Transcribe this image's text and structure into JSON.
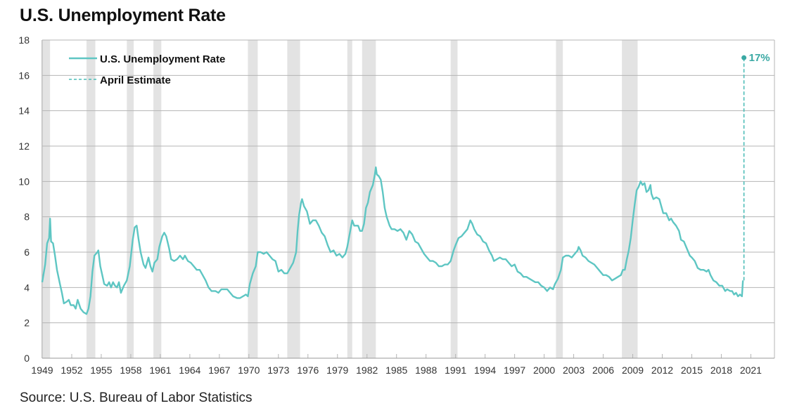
{
  "title": "U.S. Unemployment Rate",
  "source": "Source: U.S. Bureau of Labor Statistics",
  "colors": {
    "series": "#5ec6c3",
    "estimate": "#4dbdb8",
    "annotation": "#3aa9a4",
    "recession": "#e3e3e3",
    "grid": "#b5b5b5"
  },
  "chart_data": {
    "type": "line",
    "title": "U.S. Unemployment Rate",
    "xlabel": "",
    "ylabel": "",
    "xlim": [
      1949,
      2023.4
    ],
    "ylim": [
      0,
      18
    ],
    "grid": true,
    "legend_position": "top-left",
    "y_ticks": [
      "0",
      "2",
      "4",
      "6",
      "8",
      "10",
      "12",
      "14",
      "16",
      "18"
    ],
    "x_ticks": [
      "1949",
      "1952",
      "1955",
      "1958",
      "1961",
      "1964",
      "1967",
      "1970",
      "1973",
      "1976",
      "1979",
      "1982",
      "1985",
      "1988",
      "1991",
      "1994",
      "1997",
      "2000",
      "2003",
      "2006",
      "2009",
      "2012",
      "2015",
      "2018",
      "2021"
    ],
    "legend": [
      "U.S. Unemployment Rate",
      "April Estimate"
    ],
    "recessions": [
      [
        1948.9,
        1949.8
      ],
      [
        1953.5,
        1954.4
      ],
      [
        1957.6,
        1958.3
      ],
      [
        1960.3,
        1961.1
      ],
      [
        1969.9,
        1970.9
      ],
      [
        1973.9,
        1975.2
      ],
      [
        1980.0,
        1980.5
      ],
      [
        1981.5,
        1982.9
      ],
      [
        1990.5,
        1991.2
      ],
      [
        2001.2,
        2001.9
      ],
      [
        2007.9,
        2009.5
      ]
    ],
    "series": [
      {
        "name": "U.S. Unemployment Rate",
        "points": [
          [
            1949.0,
            4.3
          ],
          [
            1949.3,
            5.3
          ],
          [
            1949.5,
            6.5
          ],
          [
            1949.7,
            6.8
          ],
          [
            1949.8,
            7.9
          ],
          [
            1949.9,
            6.6
          ],
          [
            1950.1,
            6.5
          ],
          [
            1950.3,
            5.8
          ],
          [
            1950.5,
            5.0
          ],
          [
            1950.8,
            4.2
          ],
          [
            1951.0,
            3.7
          ],
          [
            1951.2,
            3.1
          ],
          [
            1951.5,
            3.2
          ],
          [
            1951.7,
            3.3
          ],
          [
            1951.9,
            3.0
          ],
          [
            1952.2,
            3.0
          ],
          [
            1952.4,
            2.8
          ],
          [
            1952.6,
            3.3
          ],
          [
            1952.9,
            2.8
          ],
          [
            1953.2,
            2.6
          ],
          [
            1953.5,
            2.5
          ],
          [
            1953.7,
            2.8
          ],
          [
            1953.9,
            3.5
          ],
          [
            1954.1,
            4.9
          ],
          [
            1954.3,
            5.8
          ],
          [
            1954.6,
            6.0
          ],
          [
            1954.7,
            6.1
          ],
          [
            1954.9,
            5.2
          ],
          [
            1955.1,
            4.7
          ],
          [
            1955.3,
            4.2
          ],
          [
            1955.6,
            4.1
          ],
          [
            1955.8,
            4.3
          ],
          [
            1956.0,
            4.0
          ],
          [
            1956.2,
            4.3
          ],
          [
            1956.4,
            4.1
          ],
          [
            1956.6,
            4.0
          ],
          [
            1956.8,
            4.3
          ],
          [
            1957.0,
            3.7
          ],
          [
            1957.3,
            4.1
          ],
          [
            1957.6,
            4.4
          ],
          [
            1957.9,
            5.2
          ],
          [
            1958.2,
            6.7
          ],
          [
            1958.4,
            7.4
          ],
          [
            1958.6,
            7.5
          ],
          [
            1958.8,
            6.7
          ],
          [
            1959.0,
            6.0
          ],
          [
            1959.3,
            5.3
          ],
          [
            1959.5,
            5.1
          ],
          [
            1959.8,
            5.7
          ],
          [
            1960.0,
            5.2
          ],
          [
            1960.2,
            4.9
          ],
          [
            1960.4,
            5.4
          ],
          [
            1960.7,
            5.6
          ],
          [
            1960.9,
            6.3
          ],
          [
            1961.2,
            6.9
          ],
          [
            1961.4,
            7.1
          ],
          [
            1961.6,
            6.9
          ],
          [
            1961.9,
            6.2
          ],
          [
            1962.1,
            5.6
          ],
          [
            1962.4,
            5.5
          ],
          [
            1962.7,
            5.6
          ],
          [
            1963.0,
            5.8
          ],
          [
            1963.3,
            5.6
          ],
          [
            1963.5,
            5.8
          ],
          [
            1963.8,
            5.5
          ],
          [
            1964.1,
            5.4
          ],
          [
            1964.4,
            5.2
          ],
          [
            1964.7,
            5.0
          ],
          [
            1965.0,
            5.0
          ],
          [
            1965.3,
            4.7
          ],
          [
            1965.6,
            4.4
          ],
          [
            1965.9,
            4.0
          ],
          [
            1966.2,
            3.8
          ],
          [
            1966.6,
            3.8
          ],
          [
            1966.9,
            3.7
          ],
          [
            1967.2,
            3.9
          ],
          [
            1967.5,
            3.9
          ],
          [
            1967.8,
            3.9
          ],
          [
            1968.1,
            3.7
          ],
          [
            1968.4,
            3.5
          ],
          [
            1968.8,
            3.4
          ],
          [
            1969.1,
            3.4
          ],
          [
            1969.4,
            3.5
          ],
          [
            1969.7,
            3.6
          ],
          [
            1969.9,
            3.5
          ],
          [
            1970.1,
            4.2
          ],
          [
            1970.4,
            4.8
          ],
          [
            1970.7,
            5.2
          ],
          [
            1970.9,
            6.0
          ],
          [
            1971.2,
            6.0
          ],
          [
            1971.5,
            5.9
          ],
          [
            1971.8,
            6.0
          ],
          [
            1972.1,
            5.8
          ],
          [
            1972.4,
            5.6
          ],
          [
            1972.7,
            5.5
          ],
          [
            1973.0,
            4.9
          ],
          [
            1973.3,
            5.0
          ],
          [
            1973.6,
            4.8
          ],
          [
            1973.9,
            4.8
          ],
          [
            1974.2,
            5.1
          ],
          [
            1974.5,
            5.4
          ],
          [
            1974.8,
            6.0
          ],
          [
            1974.95,
            7.2
          ],
          [
            1975.1,
            8.1
          ],
          [
            1975.3,
            8.8
          ],
          [
            1975.4,
            9.0
          ],
          [
            1975.6,
            8.6
          ],
          [
            1975.9,
            8.3
          ],
          [
            1976.2,
            7.6
          ],
          [
            1976.5,
            7.8
          ],
          [
            1976.8,
            7.8
          ],
          [
            1977.1,
            7.5
          ],
          [
            1977.4,
            7.1
          ],
          [
            1977.7,
            6.9
          ],
          [
            1978.0,
            6.4
          ],
          [
            1978.3,
            6.0
          ],
          [
            1978.6,
            6.1
          ],
          [
            1978.9,
            5.8
          ],
          [
            1979.2,
            5.9
          ],
          [
            1979.5,
            5.7
          ],
          [
            1979.8,
            5.9
          ],
          [
            1980.0,
            6.3
          ],
          [
            1980.2,
            6.9
          ],
          [
            1980.4,
            7.5
          ],
          [
            1980.5,
            7.8
          ],
          [
            1980.7,
            7.5
          ],
          [
            1980.9,
            7.5
          ],
          [
            1981.1,
            7.5
          ],
          [
            1981.3,
            7.2
          ],
          [
            1981.5,
            7.2
          ],
          [
            1981.7,
            7.6
          ],
          [
            1981.9,
            8.5
          ],
          [
            1982.1,
            8.8
          ],
          [
            1982.3,
            9.4
          ],
          [
            1982.6,
            9.8
          ],
          [
            1982.8,
            10.4
          ],
          [
            1982.9,
            10.8
          ],
          [
            1983.0,
            10.4
          ],
          [
            1983.2,
            10.3
          ],
          [
            1983.4,
            10.1
          ],
          [
            1983.6,
            9.4
          ],
          [
            1983.8,
            8.5
          ],
          [
            1984.0,
            8.0
          ],
          [
            1984.3,
            7.5
          ],
          [
            1984.5,
            7.3
          ],
          [
            1984.8,
            7.3
          ],
          [
            1985.1,
            7.2
          ],
          [
            1985.4,
            7.3
          ],
          [
            1985.7,
            7.1
          ],
          [
            1986.0,
            6.7
          ],
          [
            1986.3,
            7.2
          ],
          [
            1986.6,
            7.0
          ],
          [
            1986.9,
            6.6
          ],
          [
            1987.2,
            6.5
          ],
          [
            1987.5,
            6.2
          ],
          [
            1987.8,
            5.9
          ],
          [
            1988.1,
            5.7
          ],
          [
            1988.4,
            5.5
          ],
          [
            1988.7,
            5.5
          ],
          [
            1989.0,
            5.4
          ],
          [
            1989.3,
            5.2
          ],
          [
            1989.6,
            5.2
          ],
          [
            1989.9,
            5.3
          ],
          [
            1990.2,
            5.3
          ],
          [
            1990.5,
            5.5
          ],
          [
            1990.8,
            6.1
          ],
          [
            1991.0,
            6.4
          ],
          [
            1991.3,
            6.8
          ],
          [
            1991.6,
            6.9
          ],
          [
            1991.9,
            7.1
          ],
          [
            1992.2,
            7.3
          ],
          [
            1992.5,
            7.8
          ],
          [
            1992.7,
            7.6
          ],
          [
            1992.9,
            7.3
          ],
          [
            1993.2,
            7.0
          ],
          [
            1993.5,
            6.9
          ],
          [
            1993.8,
            6.6
          ],
          [
            1994.1,
            6.5
          ],
          [
            1994.4,
            6.1
          ],
          [
            1994.7,
            5.8
          ],
          [
            1994.9,
            5.5
          ],
          [
            1995.2,
            5.6
          ],
          [
            1995.5,
            5.7
          ],
          [
            1995.8,
            5.6
          ],
          [
            1996.1,
            5.6
          ],
          [
            1996.4,
            5.4
          ],
          [
            1996.7,
            5.2
          ],
          [
            1997.0,
            5.3
          ],
          [
            1997.3,
            4.9
          ],
          [
            1997.6,
            4.8
          ],
          [
            1997.9,
            4.6
          ],
          [
            1998.2,
            4.6
          ],
          [
            1998.5,
            4.5
          ],
          [
            1998.8,
            4.4
          ],
          [
            1999.1,
            4.3
          ],
          [
            1999.4,
            4.3
          ],
          [
            1999.7,
            4.1
          ],
          [
            2000.0,
            4.0
          ],
          [
            2000.3,
            3.8
          ],
          [
            2000.6,
            4.0
          ],
          [
            2000.9,
            3.9
          ],
          [
            2001.1,
            4.2
          ],
          [
            2001.4,
            4.5
          ],
          [
            2001.7,
            5.0
          ],
          [
            2001.9,
            5.7
          ],
          [
            2002.2,
            5.8
          ],
          [
            2002.5,
            5.8
          ],
          [
            2002.8,
            5.7
          ],
          [
            2003.1,
            5.9
          ],
          [
            2003.4,
            6.1
          ],
          [
            2003.5,
            6.3
          ],
          [
            2003.7,
            6.1
          ],
          [
            2003.9,
            5.8
          ],
          [
            2004.2,
            5.7
          ],
          [
            2004.5,
            5.5
          ],
          [
            2004.8,
            5.4
          ],
          [
            2005.1,
            5.3
          ],
          [
            2005.4,
            5.1
          ],
          [
            2005.7,
            4.9
          ],
          [
            2006.0,
            4.7
          ],
          [
            2006.3,
            4.7
          ],
          [
            2006.6,
            4.6
          ],
          [
            2006.9,
            4.4
          ],
          [
            2007.2,
            4.5
          ],
          [
            2007.5,
            4.6
          ],
          [
            2007.8,
            4.7
          ],
          [
            2008.0,
            5.0
          ],
          [
            2008.2,
            5.0
          ],
          [
            2008.4,
            5.6
          ],
          [
            2008.6,
            6.1
          ],
          [
            2008.8,
            6.8
          ],
          [
            2009.0,
            7.8
          ],
          [
            2009.2,
            8.7
          ],
          [
            2009.4,
            9.5
          ],
          [
            2009.6,
            9.7
          ],
          [
            2009.8,
            10.0
          ],
          [
            2010.0,
            9.8
          ],
          [
            2010.2,
            9.9
          ],
          [
            2010.4,
            9.4
          ],
          [
            2010.6,
            9.5
          ],
          [
            2010.8,
            9.8
          ],
          [
            2010.9,
            9.3
          ],
          [
            2011.1,
            9.0
          ],
          [
            2011.4,
            9.1
          ],
          [
            2011.7,
            9.0
          ],
          [
            2011.9,
            8.6
          ],
          [
            2012.1,
            8.2
          ],
          [
            2012.4,
            8.2
          ],
          [
            2012.7,
            7.8
          ],
          [
            2012.9,
            7.9
          ],
          [
            2013.1,
            7.7
          ],
          [
            2013.4,
            7.5
          ],
          [
            2013.7,
            7.2
          ],
          [
            2013.9,
            6.7
          ],
          [
            2014.2,
            6.6
          ],
          [
            2014.5,
            6.2
          ],
          [
            2014.8,
            5.8
          ],
          [
            2015.0,
            5.7
          ],
          [
            2015.3,
            5.5
          ],
          [
            2015.6,
            5.1
          ],
          [
            2015.9,
            5.0
          ],
          [
            2016.2,
            5.0
          ],
          [
            2016.5,
            4.9
          ],
          [
            2016.7,
            5.0
          ],
          [
            2016.9,
            4.7
          ],
          [
            2017.2,
            4.4
          ],
          [
            2017.5,
            4.3
          ],
          [
            2017.8,
            4.1
          ],
          [
            2018.1,
            4.1
          ],
          [
            2018.4,
            3.8
          ],
          [
            2018.6,
            3.9
          ],
          [
            2018.9,
            3.8
          ],
          [
            2019.1,
            3.8
          ],
          [
            2019.3,
            3.6
          ],
          [
            2019.5,
            3.7
          ],
          [
            2019.7,
            3.5
          ],
          [
            2019.9,
            3.6
          ],
          [
            2020.1,
            3.5
          ],
          [
            2020.2,
            4.4
          ]
        ]
      },
      {
        "name": "April Estimate",
        "points": [
          [
            2020.2,
            4.4
          ],
          [
            2020.3,
            17.0
          ]
        ],
        "style": "dashed"
      }
    ],
    "annotations": [
      {
        "x": 2020.3,
        "y": 17,
        "text": "17%"
      }
    ]
  }
}
